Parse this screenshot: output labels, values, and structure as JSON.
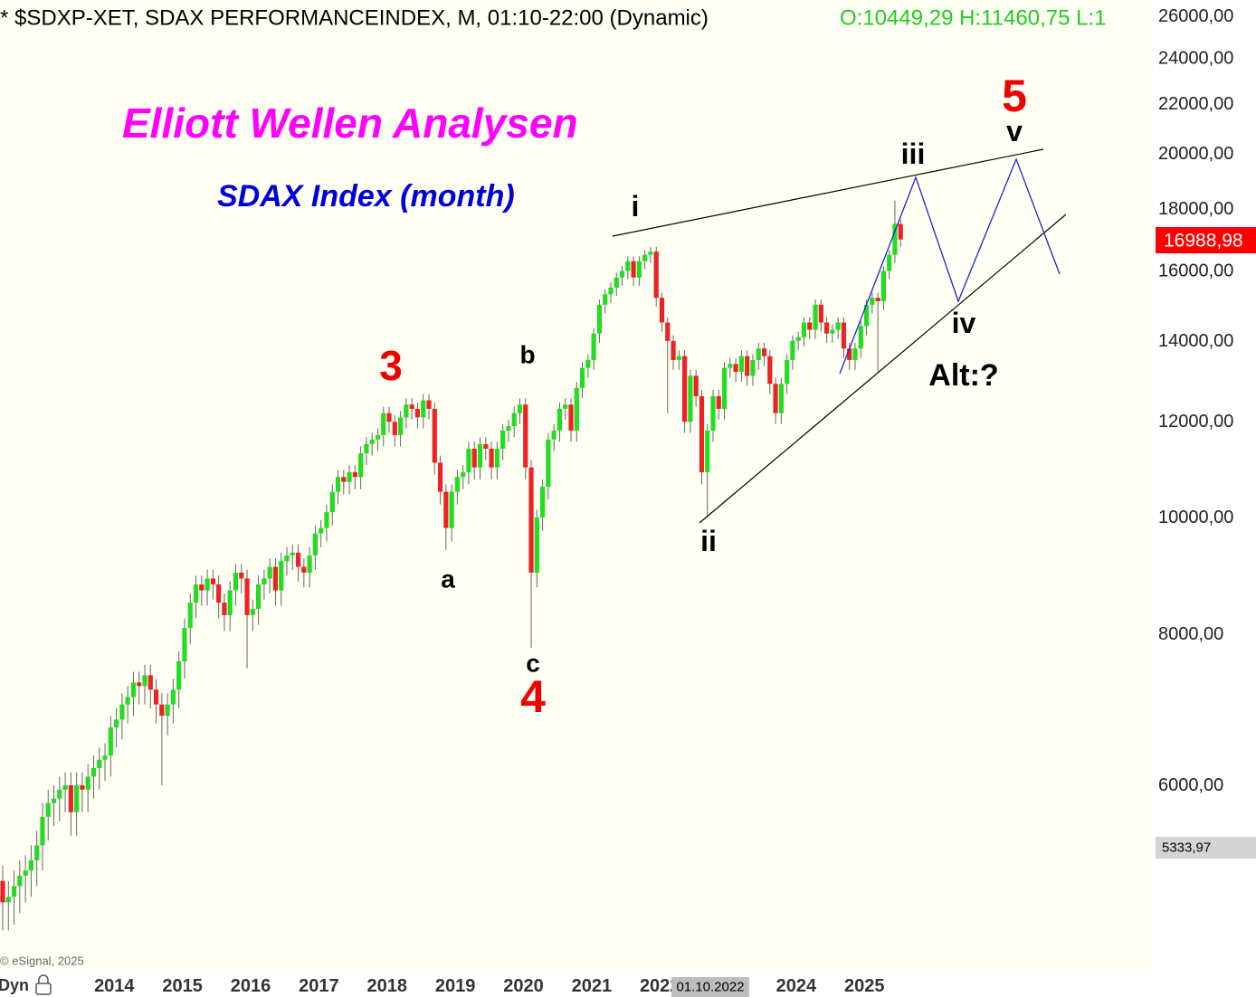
{
  "header": "* $SDXP-XET, SDAX PERFORMANCEINDEX, M, 01:10-22:00 (Dynamic)",
  "header_ohlc": "O:10449,29 H:11460,75 L:1",
  "last_price_label": "16988,98",
  "marker_price_label": "5333,97",
  "crosshair_date": "01.10.2022",
  "copyright": "© eSignal, 2025",
  "mode_label": "Dyn",
  "annotations": [
    "Elliott Wellen Analysen",
    "SDAX Index (month)",
    "3",
    "b",
    "a",
    "c",
    "4",
    "i",
    "ii",
    "iii",
    "iv",
    "v",
    "5",
    "Alt:?"
  ],
  "chart_data": {
    "type": "candlestick",
    "log_scale": true,
    "grid": false,
    "up_color": "#22dd22",
    "down_color": "#ee2222",
    "ylim": [
      4220,
      26820
    ],
    "yticks": [
      {
        "value": 6000,
        "label": "6000,00"
      },
      {
        "value": 8000,
        "label": "8000,00"
      },
      {
        "value": 10000,
        "label": "10000,00"
      },
      {
        "value": 12000,
        "label": "12000,00"
      },
      {
        "value": 14000,
        "label": "14000,00"
      },
      {
        "value": 16000,
        "label": "16000,00"
      },
      {
        "value": 18000,
        "label": "18000,00"
      },
      {
        "value": 20000,
        "label": "20000,00"
      },
      {
        "value": 22000,
        "label": "22000,00"
      },
      {
        "value": 24000,
        "label": "24000,00"
      },
      {
        "value": 26000,
        "label": "26000,00"
      }
    ],
    "categories": [
      null,
      null,
      null,
      null,
      null,
      null,
      null,
      null,
      null,
      null,
      null,
      null,
      null,
      null,
      null,
      null,
      null,
      null,
      null,
      "2014",
      null,
      null,
      null,
      null,
      null,
      null,
      null,
      null,
      null,
      null,
      null,
      "2015",
      null,
      null,
      null,
      null,
      null,
      null,
      null,
      null,
      null,
      null,
      null,
      "2016",
      null,
      null,
      null,
      null,
      null,
      null,
      null,
      null,
      null,
      null,
      null,
      "2017",
      null,
      null,
      null,
      null,
      null,
      null,
      null,
      null,
      null,
      null,
      null,
      "2018",
      null,
      null,
      null,
      null,
      null,
      null,
      null,
      null,
      null,
      null,
      null,
      "2019",
      null,
      null,
      null,
      null,
      null,
      null,
      null,
      null,
      null,
      null,
      null,
      "2020",
      null,
      null,
      null,
      null,
      null,
      null,
      null,
      null,
      null,
      null,
      null,
      "2021",
      null,
      null,
      null,
      null,
      null,
      null,
      null,
      null,
      null,
      null,
      null,
      "2022",
      null,
      null,
      null,
      null,
      null,
      null,
      null,
      null,
      null,
      null,
      null,
      null,
      null,
      null,
      null,
      null,
      null,
      null,
      null,
      null,
      null,
      null,
      null,
      "2024",
      null,
      null,
      null,
      null,
      null,
      null,
      null,
      null,
      null,
      null,
      null,
      "2025",
      null,
      null,
      null,
      null,
      null,
      null,
      null
    ],
    "open": [
      5000,
      4800,
      4850,
      4950,
      5050,
      5100,
      5200,
      5350,
      5650,
      5800,
      5850,
      5950,
      6000,
      5700,
      6000,
      5950,
      6100,
      6200,
      6300,
      6350,
      6700,
      6800,
      7000,
      7100,
      7300,
      7250,
      7400,
      7200,
      7000,
      6850,
      7000,
      7200,
      7600,
      8100,
      8500,
      8800,
      8700,
      8900,
      8800,
      8500,
      8300,
      8700,
      9000,
      8900,
      8300,
      8400,
      8800,
      8900,
      9100,
      8700,
      9200,
      9300,
      9350,
      9100,
      9000,
      9300,
      9700,
      9800,
      10100,
      10500,
      10800,
      10700,
      10900,
      10800,
      11300,
      11500,
      11600,
      11700,
      12200,
      12000,
      11700,
      12100,
      12400,
      12300,
      12100,
      12500,
      12300,
      11100,
      10500,
      9800,
      10500,
      10800,
      10900,
      11400,
      11000,
      11500,
      11400,
      11000,
      11400,
      11800,
      11900,
      12200,
      12400,
      11000,
      9000,
      10000,
      10600,
      11600,
      11800,
      12300,
      12400,
      11800,
      12800,
      13300,
      13500,
      14200,
      15000,
      15300,
      15500,
      15800,
      16000,
      16300,
      15800,
      16300,
      16500,
      16600,
      15200,
      14500,
      14000,
      13500,
      13600,
      12000,
      13100,
      12600,
      10900,
      11800,
      12600,
      12300,
      13300,
      13400,
      13200,
      13600,
      13100,
      13500,
      13800,
      13600,
      12900,
      12200,
      12900,
      13500,
      14000,
      14100,
      14500,
      14300,
      15000,
      14500,
      14200,
      14300,
      14500,
      13800,
      13500,
      13800,
      14400,
      15000,
      15200,
      15100,
      16000,
      16500,
      17500
    ],
    "high": [
      5150,
      5000,
      5100,
      5200,
      5250,
      5350,
      5500,
      5800,
      5950,
      6000,
      6100,
      6150,
      6150,
      6150,
      6150,
      6250,
      6350,
      6450,
      6500,
      6850,
      6950,
      7150,
      7250,
      7450,
      7450,
      7550,
      7550,
      7350,
      7150,
      7150,
      7350,
      7750,
      8250,
      8650,
      8950,
      8950,
      9050,
      9050,
      8950,
      8650,
      8850,
      9150,
      9150,
      9050,
      8550,
      8950,
      9050,
      9250,
      9250,
      9350,
      9450,
      9500,
      9500,
      9250,
      9450,
      9850,
      9950,
      10250,
      10650,
      10950,
      10950,
      11050,
      11050,
      11450,
      11650,
      11750,
      11850,
      12350,
      12350,
      12150,
      12250,
      12550,
      12550,
      12450,
      12650,
      12650,
      12450,
      11250,
      10650,
      10650,
      10950,
      11050,
      11550,
      11550,
      11650,
      11650,
      11550,
      11550,
      11950,
      12050,
      12350,
      12550,
      12550,
      11150,
      10150,
      10750,
      11750,
      11950,
      12450,
      12550,
      12550,
      12950,
      13450,
      13650,
      14350,
      15150,
      15450,
      15650,
      15950,
      16150,
      16450,
      16450,
      16450,
      16650,
      16750,
      16750,
      15350,
      14650,
      14150,
      13750,
      13750,
      13250,
      13250,
      12750,
      11950,
      12750,
      12750,
      13450,
      13550,
      13550,
      13750,
      13750,
      13650,
      13950,
      13950,
      13750,
      13050,
      13050,
      13650,
      14150,
      14250,
      14650,
      14650,
      15150,
      15150,
      14650,
      14450,
      14650,
      14650,
      13950,
      13950,
      14550,
      15150,
      15350,
      15350,
      16150,
      16650,
      18300,
      17650
    ],
    "low": [
      4550,
      4550,
      4600,
      4700,
      4800,
      4850,
      4950,
      5100,
      5400,
      5550,
      5600,
      5700,
      5450,
      5450,
      5700,
      5700,
      5850,
      5950,
      6050,
      6100,
      6450,
      6550,
      6750,
      6850,
      7000,
      7000,
      6950,
      6750,
      6000,
      6600,
      6750,
      6950,
      7350,
      7850,
      8250,
      8450,
      8450,
      8550,
      8250,
      8050,
      8050,
      8450,
      8650,
      7500,
      8050,
      8150,
      8550,
      8650,
      8450,
      8450,
      8950,
      9050,
      8850,
      8750,
      8750,
      9050,
      9450,
      9550,
      9850,
      10250,
      10450,
      10450,
      10550,
      10550,
      11050,
      11250,
      11350,
      11450,
      11750,
      11450,
      11450,
      11850,
      12050,
      11850,
      11850,
      12050,
      10850,
      10250,
      9400,
      9550,
      10250,
      10550,
      10650,
      10750,
      10750,
      11150,
      10750,
      10750,
      11150,
      11550,
      11650,
      11950,
      10750,
      7800,
      8750,
      9750,
      10350,
      11350,
      11550,
      12050,
      11550,
      11550,
      12550,
      13050,
      13250,
      13950,
      14750,
      15050,
      15250,
      15550,
      15750,
      15550,
      15550,
      16050,
      16250,
      14950,
      14250,
      12200,
      13250,
      13250,
      11750,
      11750,
      12350,
      10650,
      10000,
      11550,
      12050,
      12050,
      13050,
      12950,
      12950,
      12850,
      12850,
      13250,
      13350,
      12650,
      11950,
      11950,
      12650,
      13250,
      13750,
      13850,
      14050,
      14050,
      14250,
      13950,
      13950,
      14050,
      13550,
      13250,
      13250,
      13550,
      14150,
      14750,
      13200,
      14850,
      15750,
      16250,
      16750
    ],
    "close": [
      4800,
      4850,
      4950,
      5050,
      5100,
      5200,
      5350,
      5650,
      5800,
      5850,
      5950,
      6000,
      5700,
      6000,
      5950,
      6100,
      6200,
      6300,
      6350,
      6700,
      6800,
      7000,
      7100,
      7300,
      7250,
      7400,
      7200,
      7000,
      6850,
      7000,
      7200,
      7600,
      8100,
      8500,
      8800,
      8700,
      8900,
      8800,
      8500,
      8300,
      8700,
      9000,
      8900,
      8300,
      8400,
      8800,
      8900,
      9100,
      8700,
      9200,
      9300,
      9350,
      9100,
      9000,
      9300,
      9700,
      9800,
      10100,
      10500,
      10800,
      10700,
      10900,
      10800,
      11300,
      11500,
      11600,
      11700,
      12200,
      12000,
      11700,
      12100,
      12400,
      12300,
      12100,
      12500,
      12300,
      11100,
      10500,
      9800,
      10500,
      10800,
      10900,
      11400,
      11000,
      11500,
      11400,
      11000,
      11400,
      11800,
      11900,
      12200,
      12400,
      11000,
      9000,
      10000,
      10600,
      11600,
      11800,
      12300,
      12400,
      11800,
      12800,
      13300,
      13500,
      14200,
      15000,
      15300,
      15500,
      15800,
      16000,
      16300,
      15800,
      16300,
      16500,
      16600,
      15200,
      14500,
      14000,
      13500,
      13600,
      12000,
      13100,
      12600,
      10900,
      11800,
      12600,
      12300,
      13300,
      13400,
      13200,
      13600,
      13100,
      13500,
      13800,
      13600,
      12900,
      12200,
      12900,
      13500,
      14000,
      14100,
      14500,
      14300,
      15000,
      14500,
      14200,
      14300,
      14500,
      13800,
      13500,
      13800,
      14400,
      15000,
      15200,
      15100,
      16000,
      16500,
      17500,
      16989
    ]
  }
}
